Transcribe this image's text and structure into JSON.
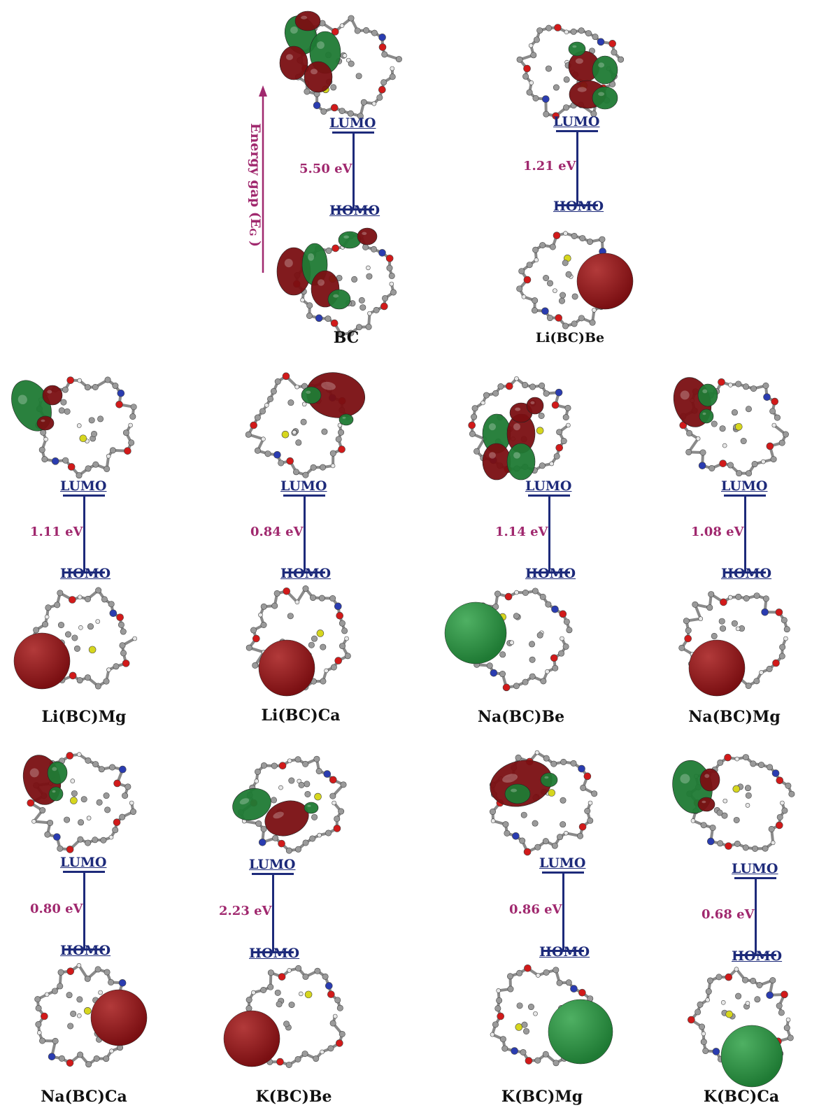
{
  "energy_axis_label": "Energy gap (E",
  "energy_axis_subscript": "G",
  "energy_axis_close": " )",
  "colors": {
    "lobe_green": "#1f7a34",
    "lobe_red": "#7a0f12",
    "level": "#1d2a7a",
    "gap": "#a0286e"
  },
  "panels": [
    {
      "name": "BC",
      "lumo": "LUMO",
      "homo": "HOMO",
      "gap": "5.50 eV"
    },
    {
      "name": "Li(BC)Be",
      "lumo": "LUMO",
      "homo": "HOMO",
      "gap": "1.21 eV"
    },
    {
      "name": "Li(BC)Mg",
      "lumo": "LUMO",
      "homo": "HOMO",
      "gap": "1.11 eV"
    },
    {
      "name": "Li(BC)Ca",
      "lumo": "LUMO",
      "homo": "HOMO",
      "gap": "0.84 eV"
    },
    {
      "name": "Na(BC)Be",
      "lumo": "LUMO",
      "homo": "HOMO",
      "gap": "1.14 eV"
    },
    {
      "name": "Na(BC)Mg",
      "lumo": "LUMO",
      "homo": "HOMO",
      "gap": "1.08 eV"
    },
    {
      "name": "Na(BC)Ca",
      "lumo": "LUMO",
      "homo": "HOMO",
      "gap": "0.80 eV"
    },
    {
      "name": "K(BC)Be",
      "lumo": "LUMO",
      "homo": "HOMO",
      "gap": "2.23 eV"
    },
    {
      "name": "K(BC)Mg",
      "lumo": "LUMO",
      "homo": "HOMO",
      "gap": "0.86 eV"
    },
    {
      "name": "K(BC)Ca",
      "lumo": "LUMO",
      "homo": "HOMO",
      "gap": "0.68 eV"
    }
  ]
}
